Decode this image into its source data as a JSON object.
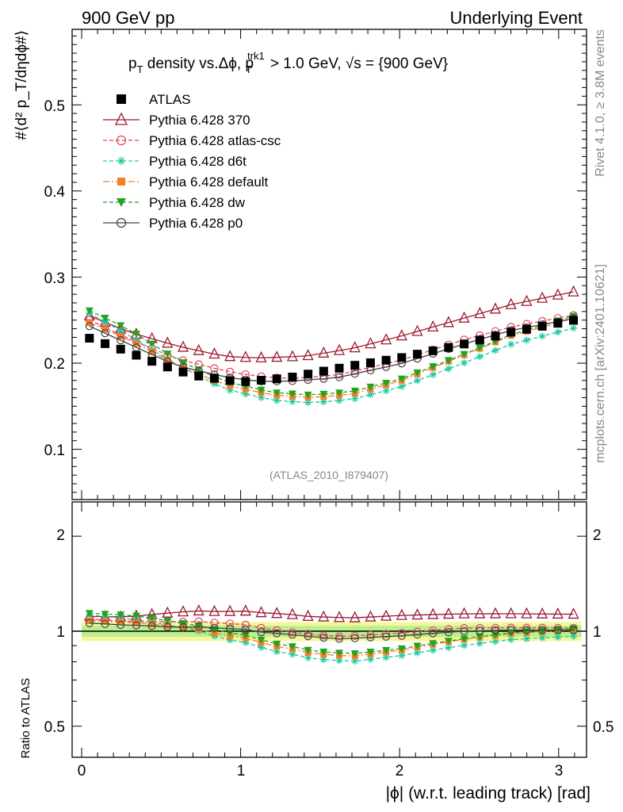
{
  "header": {
    "left": "900 GeV pp",
    "right": "Underlying Event"
  },
  "side": {
    "rivet": "Rivet 4.1.0, ≥ 3.8M events",
    "mcplots": "mcplots.cern.ch [arXiv:2401.10621]"
  },
  "title": {
    "p": "p",
    "T": "T",
    "mid": " density vs.Δϕ, p",
    "trk": "trk1",
    "T2": "T",
    "rest": " > 1.0 GeV, ",
    "sqrt_s": "√s = {900 GeV}"
  },
  "analysis_label": "(ATLAS_2010_I879407)",
  "axes": {
    "xlabel": "|ϕ| (w.r.t. leading track) [rad]",
    "ylabel": "#⟨d² p_T/dηdϕ#⟩",
    "ratio_ylabel": "Ratio to ATLAS",
    "xlim": [
      -0.06,
      3.2
    ],
    "ylim": [
      0.04,
      0.595
    ],
    "ratio_ylim": [
      0.4,
      2.3
    ],
    "xticks": [
      "0",
      "1",
      "2",
      "3"
    ],
    "yticks": [
      "0.1",
      "0.2",
      "0.3",
      "0.4",
      "0.5"
    ],
    "ratio_yticks": [
      "0.5",
      "1",
      "2"
    ]
  },
  "chart_data": {
    "type": "scatter",
    "title": "pT density vs. Δϕ, pT trk1 > 1.0 GeV, √s = {900 GeV}",
    "xlabel": "|ϕ| (w.r.t. leading track) [rad]",
    "ylabel": "⟨d² pT/dηdϕ⟩",
    "legend_position": "top-left",
    "nbins": 32,
    "bin_width": 0.0982,
    "series": [
      {
        "name": "ATLAS",
        "label": "ATLAS",
        "color": "#000000",
        "marker": "square",
        "line": "none",
        "knots": [
          [
            0.05,
            0.229
          ],
          [
            0.25,
            0.216
          ],
          [
            0.5,
            0.198
          ],
          [
            0.7,
            0.186
          ],
          [
            1.0,
            0.178
          ],
          [
            1.3,
            0.183
          ],
          [
            1.7,
            0.197
          ],
          [
            2.0,
            0.206
          ],
          [
            2.4,
            0.222
          ],
          [
            2.7,
            0.236
          ],
          [
            3.1,
            0.25
          ]
        ]
      },
      {
        "name": "Pythia 6.428 370",
        "label": "Pythia 6.428 370",
        "color": "#9b1b30",
        "marker": "open-triangle",
        "line": "solid",
        "knots": [
          [
            0.05,
            0.255
          ],
          [
            0.3,
            0.236
          ],
          [
            0.6,
            0.22
          ],
          [
            0.9,
            0.208
          ],
          [
            1.1,
            0.206
          ],
          [
            1.4,
            0.208
          ],
          [
            1.7,
            0.217
          ],
          [
            2.0,
            0.231
          ],
          [
            2.4,
            0.252
          ],
          [
            2.7,
            0.268
          ],
          [
            3.1,
            0.283
          ]
        ]
      },
      {
        "name": "Pythia 6.428 atlas-csc",
        "label": "Pythia 6.428 atlas-csc",
        "color": "#e8405c",
        "marker": "open-circle",
        "line": "dashed",
        "knots": [
          [
            0.05,
            0.25
          ],
          [
            0.3,
            0.228
          ],
          [
            0.6,
            0.205
          ],
          [
            0.9,
            0.191
          ],
          [
            1.1,
            0.185
          ],
          [
            1.3,
            0.182
          ],
          [
            1.6,
            0.186
          ],
          [
            2.0,
            0.203
          ],
          [
            2.4,
            0.227
          ],
          [
            2.7,
            0.242
          ],
          [
            3.1,
            0.256
          ]
        ]
      },
      {
        "name": "Pythia 6.428 d6t",
        "label": "Pythia 6.428 d6t",
        "color": "#1fc9a0",
        "marker": "star",
        "line": "dashed",
        "knots": [
          [
            0.05,
            0.258
          ],
          [
            0.3,
            0.232
          ],
          [
            0.6,
            0.198
          ],
          [
            0.9,
            0.17
          ],
          [
            1.2,
            0.157
          ],
          [
            1.45,
            0.154
          ],
          [
            1.7,
            0.158
          ],
          [
            2.0,
            0.172
          ],
          [
            2.4,
            0.2
          ],
          [
            2.7,
            0.222
          ],
          [
            3.1,
            0.241
          ]
        ]
      },
      {
        "name": "Pythia 6.428 default",
        "label": "Pythia 6.428 default",
        "color": "#f57f2a",
        "marker": "filled-square",
        "line": "dashdot",
        "knots": [
          [
            0.05,
            0.247
          ],
          [
            0.3,
            0.227
          ],
          [
            0.6,
            0.198
          ],
          [
            0.9,
            0.175
          ],
          [
            1.2,
            0.163
          ],
          [
            1.45,
            0.16
          ],
          [
            1.7,
            0.164
          ],
          [
            2.0,
            0.179
          ],
          [
            2.4,
            0.209
          ],
          [
            2.7,
            0.232
          ],
          [
            3.1,
            0.252
          ]
        ]
      },
      {
        "name": "Pythia 6.428 dw",
        "label": "Pythia 6.428 dw",
        "color": "#1fa51f",
        "marker": "down-triangle",
        "line": "dashed",
        "knots": [
          [
            0.05,
            0.261
          ],
          [
            0.3,
            0.239
          ],
          [
            0.6,
            0.204
          ],
          [
            0.9,
            0.179
          ],
          [
            1.2,
            0.166
          ],
          [
            1.45,
            0.163
          ],
          [
            1.7,
            0.167
          ],
          [
            2.0,
            0.181
          ],
          [
            2.4,
            0.21
          ],
          [
            2.7,
            0.233
          ],
          [
            3.1,
            0.255
          ]
        ]
      },
      {
        "name": "Pythia 6.428 p0",
        "label": "Pythia 6.428 p0",
        "color": "#404040",
        "marker": "open-circle",
        "line": "solid",
        "knots": [
          [
            0.05,
            0.243
          ],
          [
            0.3,
            0.222
          ],
          [
            0.6,
            0.197
          ],
          [
            0.9,
            0.184
          ],
          [
            1.1,
            0.179
          ],
          [
            1.3,
            0.179
          ],
          [
            1.6,
            0.183
          ],
          [
            2.0,
            0.199
          ],
          [
            2.4,
            0.222
          ],
          [
            2.7,
            0.238
          ],
          [
            3.1,
            0.252
          ]
        ]
      }
    ]
  }
}
